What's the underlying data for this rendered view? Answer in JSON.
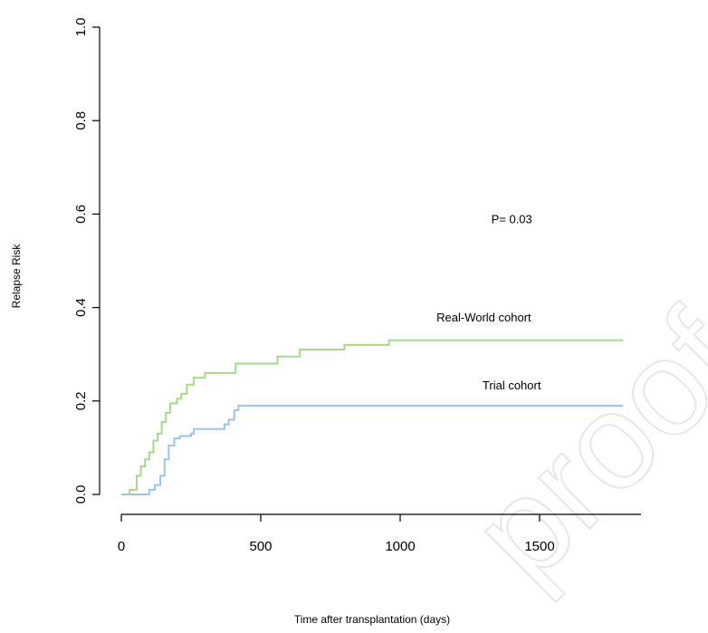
{
  "chart_data": {
    "type": "line",
    "xlabel": "Time after transplantation (days)",
    "ylabel": "Relapse Risk",
    "xlim": [
      0,
      1800
    ],
    "ylim": [
      0,
      1.0
    ],
    "x_ticks": [
      0,
      500,
      1000,
      1500
    ],
    "y_ticks": [
      0.0,
      0.2,
      0.4,
      0.6,
      0.8,
      1.0
    ],
    "y_tick_labels": [
      "0.0",
      "0.2",
      "0.4",
      "0.6",
      "0.8",
      "1.0"
    ],
    "step": true,
    "annotations": [
      {
        "text": "P= 0.03",
        "x": 1400,
        "y": 0.58
      },
      {
        "text": "Real-World cohort",
        "x": 1300,
        "y": 0.37
      },
      {
        "text": "Trial cohort",
        "x": 1400,
        "y": 0.225
      }
    ],
    "series": [
      {
        "name": "Real-World cohort",
        "color": "#a8d88a",
        "points": [
          [
            0,
            0
          ],
          [
            30,
            0.01
          ],
          [
            55,
            0.04
          ],
          [
            70,
            0.06
          ],
          [
            85,
            0.075
          ],
          [
            100,
            0.09
          ],
          [
            115,
            0.115
          ],
          [
            130,
            0.13
          ],
          [
            145,
            0.155
          ],
          [
            160,
            0.175
          ],
          [
            175,
            0.195
          ],
          [
            200,
            0.205
          ],
          [
            215,
            0.215
          ],
          [
            235,
            0.235
          ],
          [
            260,
            0.25
          ],
          [
            300,
            0.26
          ],
          [
            410,
            0.28
          ],
          [
            560,
            0.295
          ],
          [
            640,
            0.31
          ],
          [
            800,
            0.32
          ],
          [
            960,
            0.33
          ],
          [
            1800,
            0.33
          ]
        ]
      },
      {
        "name": "Trial cohort",
        "color": "#9cc4e8",
        "points": [
          [
            0,
            0
          ],
          [
            85,
            0.0
          ],
          [
            100,
            0.01
          ],
          [
            120,
            0.02
          ],
          [
            140,
            0.04
          ],
          [
            155,
            0.075
          ],
          [
            170,
            0.105
          ],
          [
            190,
            0.12
          ],
          [
            210,
            0.125
          ],
          [
            250,
            0.13
          ],
          [
            260,
            0.14
          ],
          [
            370,
            0.15
          ],
          [
            385,
            0.16
          ],
          [
            405,
            0.18
          ],
          [
            420,
            0.19
          ],
          [
            1800,
            0.19
          ]
        ]
      }
    ]
  },
  "watermark": "proof"
}
